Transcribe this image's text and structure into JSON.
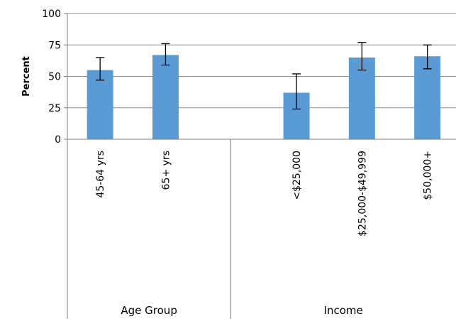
{
  "chart_data": {
    "type": "bar",
    "ylabel": "Percent",
    "ylim": [
      0,
      100
    ],
    "yticks": [
      "0",
      "25",
      "50",
      "75",
      "100"
    ],
    "grid": true,
    "groups": [
      {
        "label": "Age Group",
        "categories": [
          {
            "label": "45-64 yrs",
            "value": 55,
            "err_low": 47,
            "err_high": 65
          },
          {
            "label": "65+ yrs",
            "value": 67,
            "err_low": 59,
            "err_high": 76
          }
        ]
      },
      {
        "label": "Income",
        "categories": [
          {
            "label": "<$25,000",
            "value": 37,
            "err_low": 24,
            "err_high": 52
          },
          {
            "label": "$25,000-$49,999",
            "value": 65,
            "err_low": 55,
            "err_high": 77
          },
          {
            "label": "$50,000+",
            "value": 66,
            "err_low": 56,
            "err_high": 75
          }
        ]
      }
    ],
    "colors": {
      "bar": "#5b9bd5",
      "grid": "#8a8a8a",
      "axis": "#7f7f7f",
      "error": "#000000"
    }
  }
}
